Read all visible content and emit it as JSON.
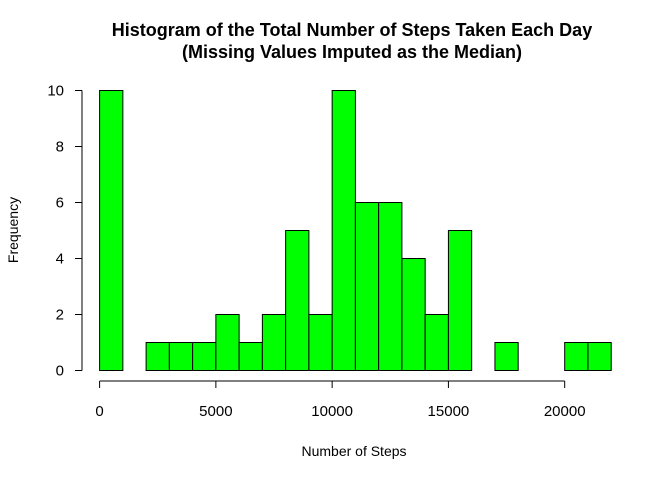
{
  "chart_data": {
    "type": "bar",
    "title": "Histogram of the Total Number of Steps Taken Each Day",
    "subtitle": "(Missing Values Imputed as the Median)",
    "xlabel": "Number of Steps",
    "ylabel": "Frequency",
    "bin_width": 1000,
    "bins": [
      [
        0,
        1000
      ],
      [
        1000,
        2000
      ],
      [
        2000,
        3000
      ],
      [
        3000,
        4000
      ],
      [
        4000,
        5000
      ],
      [
        5000,
        6000
      ],
      [
        6000,
        7000
      ],
      [
        7000,
        8000
      ],
      [
        8000,
        9000
      ],
      [
        9000,
        10000
      ],
      [
        10000,
        11000
      ],
      [
        11000,
        12000
      ],
      [
        12000,
        13000
      ],
      [
        13000,
        14000
      ],
      [
        14000,
        15000
      ],
      [
        15000,
        16000
      ],
      [
        16000,
        17000
      ],
      [
        17000,
        18000
      ],
      [
        18000,
        19000
      ],
      [
        19000,
        20000
      ],
      [
        20000,
        21000
      ],
      [
        21000,
        22000
      ]
    ],
    "values": [
      10,
      0,
      1,
      1,
      1,
      2,
      1,
      2,
      5,
      2,
      10,
      6,
      6,
      4,
      2,
      5,
      0,
      1,
      0,
      0,
      1,
      1
    ],
    "xlim": [
      0,
      22000
    ],
    "ylim": [
      0,
      10
    ],
    "x_ticks": [
      "0",
      "5000",
      "10000",
      "15000",
      "20000"
    ],
    "y_ticks": [
      "0",
      "2",
      "4",
      "6",
      "8",
      "10"
    ],
    "bar_color": "#00ff00",
    "bar_border_color": "#000000",
    "grid": false,
    "legend": "none"
  }
}
